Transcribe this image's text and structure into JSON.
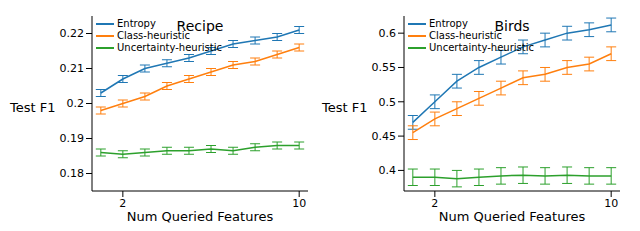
{
  "chart_data": [
    {
      "type": "line",
      "title": "Recipe",
      "x_label": "Num Queried Features",
      "y_label": "Test F1",
      "x": [
        1,
        2,
        3,
        4,
        5,
        6,
        7,
        8,
        9,
        10
      ],
      "xlim": [
        0.6,
        10.4
      ],
      "xticks": [
        2,
        10
      ],
      "ylim": [
        0.175,
        0.225
      ],
      "yticks": [
        0.18,
        0.19,
        0.2,
        0.21,
        0.22
      ],
      "grid": false,
      "legend": "upper left",
      "series": [
        {
          "name": "Entropy",
          "color": "#1f77b4",
          "values": [
            0.203,
            0.207,
            0.21,
            0.2115,
            0.213,
            0.215,
            0.217,
            0.218,
            0.219,
            0.221
          ],
          "errors": [
            0.001,
            0.001,
            0.001,
            0.001,
            0.001,
            0.001,
            0.001,
            0.001,
            0.001,
            0.001
          ]
        },
        {
          "name": "Class-heuristic",
          "color": "#ff7f0e",
          "values": [
            0.198,
            0.2,
            0.202,
            0.205,
            0.207,
            0.209,
            0.211,
            0.212,
            0.214,
            0.216
          ],
          "errors": [
            0.001,
            0.001,
            0.001,
            0.001,
            0.001,
            0.001,
            0.001,
            0.001,
            0.001,
            0.001
          ]
        },
        {
          "name": "Uncertainty-heuristic",
          "color": "#2ca02c",
          "values": [
            0.186,
            0.1855,
            0.186,
            0.1865,
            0.1865,
            0.187,
            0.1865,
            0.1875,
            0.188,
            0.188
          ],
          "errors": [
            0.001,
            0.001,
            0.001,
            0.001,
            0.001,
            0.001,
            0.001,
            0.001,
            0.001,
            0.001
          ]
        }
      ]
    },
    {
      "type": "line",
      "title": "Birds",
      "x_label": "Num Queried Features",
      "y_label": "Test F1",
      "x": [
        1,
        2,
        3,
        4,
        5,
        6,
        7,
        8,
        9,
        10
      ],
      "xlim": [
        0.6,
        10.4
      ],
      "xticks": [
        2,
        10
      ],
      "ylim": [
        0.37,
        0.625
      ],
      "yticks": [
        0.4,
        0.45,
        0.5,
        0.55,
        0.6
      ],
      "grid": false,
      "legend": "upper left",
      "series": [
        {
          "name": "Entropy",
          "color": "#1f77b4",
          "values": [
            0.47,
            0.5,
            0.53,
            0.55,
            0.565,
            0.58,
            0.59,
            0.6,
            0.605,
            0.612
          ],
          "errors": [
            0.01,
            0.01,
            0.01,
            0.01,
            0.01,
            0.01,
            0.01,
            0.01,
            0.01,
            0.01
          ]
        },
        {
          "name": "Class-heuristic",
          "color": "#ff7f0e",
          "values": [
            0.455,
            0.475,
            0.49,
            0.505,
            0.52,
            0.535,
            0.54,
            0.55,
            0.555,
            0.57
          ],
          "errors": [
            0.01,
            0.01,
            0.01,
            0.01,
            0.01,
            0.01,
            0.01,
            0.01,
            0.01,
            0.01
          ]
        },
        {
          "name": "Uncertainty-heuristic",
          "color": "#2ca02c",
          "values": [
            0.39,
            0.39,
            0.388,
            0.39,
            0.392,
            0.393,
            0.392,
            0.393,
            0.392,
            0.392
          ],
          "errors": [
            0.012,
            0.012,
            0.012,
            0.012,
            0.012,
            0.012,
            0.012,
            0.012,
            0.012,
            0.012
          ]
        }
      ]
    }
  ]
}
